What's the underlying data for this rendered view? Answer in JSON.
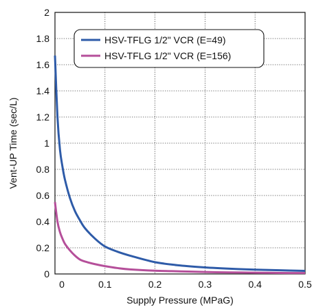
{
  "chart_data": {
    "type": "line",
    "title": "",
    "xlabel": "Supply Pressure (MPaG)",
    "ylabel": "Vent-UP Time (sec/L)",
    "xlim": [
      0,
      0.5
    ],
    "ylim": [
      0,
      2
    ],
    "x_ticks": [
      "0",
      "0.1",
      "0.2",
      "0.3",
      "0.4",
      "0.5"
    ],
    "y_ticks": [
      "0",
      "0.2",
      "0.4",
      "0.6",
      "0.8",
      "1",
      "1.2",
      "1.4",
      "1.6",
      "1.8",
      "2"
    ],
    "grid": true,
    "grid_style": "dotted",
    "legend_position": "top",
    "series": [
      {
        "name": "HSV-TFLG 1/2\" VCR (E=49)",
        "color": "#2e5ba8",
        "x": [
          0.0,
          0.005,
          0.01,
          0.015,
          0.02,
          0.03,
          0.04,
          0.05,
          0.06,
          0.08,
          0.1,
          0.125,
          0.15,
          0.2,
          0.25,
          0.3,
          0.35,
          0.4,
          0.45,
          0.5
        ],
        "y": [
          1.67,
          1.2,
          0.95,
          0.82,
          0.72,
          0.58,
          0.48,
          0.41,
          0.35,
          0.27,
          0.21,
          0.17,
          0.14,
          0.09,
          0.065,
          0.05,
          0.04,
          0.033,
          0.028,
          0.024
        ]
      },
      {
        "name": "HSV-TFLG 1/2\" VCR (E=156)",
        "color": "#b54f9a",
        "x": [
          0.0,
          0.005,
          0.01,
          0.015,
          0.02,
          0.03,
          0.04,
          0.05,
          0.06,
          0.08,
          0.1,
          0.125,
          0.15,
          0.2,
          0.25,
          0.3,
          0.35,
          0.4,
          0.45,
          0.5
        ],
        "y": [
          0.55,
          0.4,
          0.32,
          0.27,
          0.23,
          0.18,
          0.14,
          0.11,
          0.095,
          0.075,
          0.06,
          0.045,
          0.035,
          0.025,
          0.02,
          0.015,
          0.012,
          0.01,
          0.008,
          0.007
        ]
      }
    ]
  }
}
